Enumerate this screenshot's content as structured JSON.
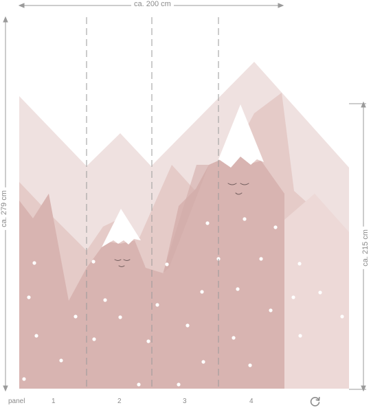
{
  "dimensions": {
    "width_label": "ca. 200 cm",
    "height_label": "ca. 279 cm",
    "right_height_label": "ca. 215 cm"
  },
  "panels": {
    "label": "panel",
    "numbers": [
      "1",
      "2",
      "3",
      "4"
    ]
  },
  "icons": {
    "rotate": "rotate-icon"
  },
  "colors": {
    "pale_pink": "#efe1e0",
    "light_pink": "#e5cbc8",
    "mid_pink": "#d8b4b1",
    "snow": "#ffffff",
    "guide": "#9a9a9a"
  }
}
